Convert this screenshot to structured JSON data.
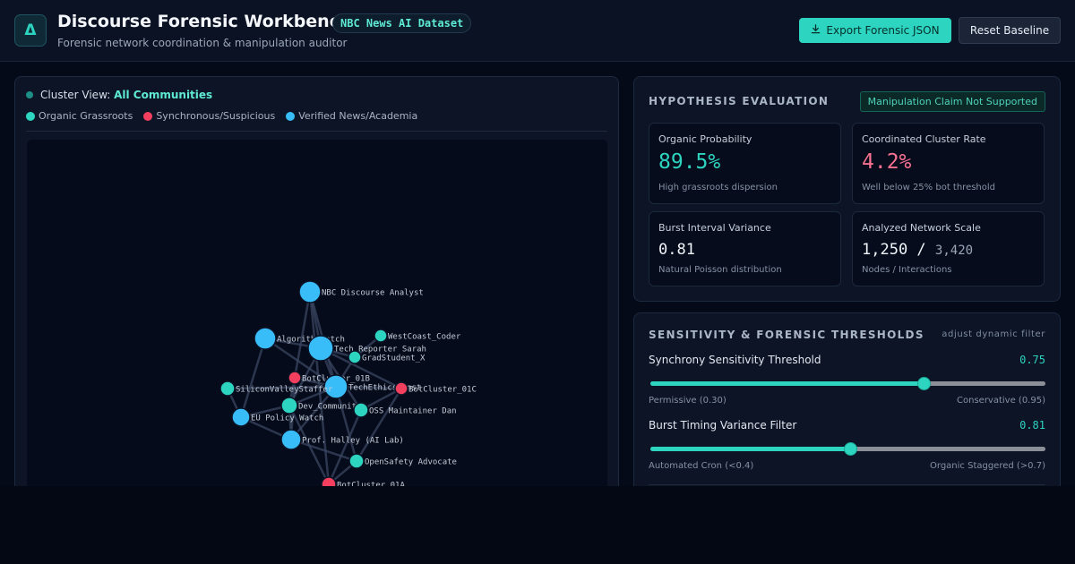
{
  "header": {
    "logo_glyph": "Δ",
    "title": "Discourse Forensic Workbench",
    "dataset_badge": "NBC News AI Dataset",
    "subtitle": "Forensic network coordination & manipulation auditor",
    "export_label": "Export Forensic JSON",
    "export_icon": "download-icon",
    "reset_label": "Reset Baseline"
  },
  "graph": {
    "cluster_prefix": "Cluster View:",
    "cluster_value": "All Communities",
    "legend": [
      {
        "label": "Organic Grassroots",
        "color": "#2dd4bf"
      },
      {
        "label": "Synchronous/Suspicious",
        "color": "#f43f5e"
      },
      {
        "label": "Verified News/Academia",
        "color": "#38bdf8"
      }
    ],
    "nodes": [
      {
        "label": "NBC Discourse Analyst",
        "type": "verified"
      },
      {
        "label": "AlgorithmWatch",
        "type": "verified"
      },
      {
        "label": "Tech Reporter Sarah",
        "type": "verified"
      },
      {
        "label": "WestCoast_Coder",
        "type": "organic"
      },
      {
        "label": "GradStudent_X",
        "type": "organic"
      },
      {
        "label": "BotCluster_01B",
        "type": "suspicious"
      },
      {
        "label": "TechEthics_Inst",
        "type": "verified"
      },
      {
        "label": "BotCluster_01C",
        "type": "suspicious"
      },
      {
        "label": "SiliconValleyStaffer",
        "type": "organic"
      },
      {
        "label": "Dev_Community",
        "type": "organic"
      },
      {
        "label": "OSS Maintainer Dan",
        "type": "organic"
      },
      {
        "label": "EU Policy Watch",
        "type": "verified"
      },
      {
        "label": "Prof. Halley (AI Lab)",
        "type": "verified"
      },
      {
        "label": "OpenSafety Advocate",
        "type": "organic"
      },
      {
        "label": "BotCluster_01A",
        "type": "suspicious"
      }
    ]
  },
  "hypothesis": {
    "heading": "HYPOTHESIS EVALUATION",
    "badge": "Manipulation Claim Not Supported",
    "metrics": [
      {
        "label": "Organic Probability",
        "value": "89.5%",
        "note": "High grassroots dispersion"
      },
      {
        "label": "Coordinated Cluster Rate",
        "value": "4.2%",
        "note": "Well below 25% bot threshold"
      },
      {
        "label": "Burst Interval Variance",
        "value": "0.81",
        "note": "Natural Poisson distribution"
      },
      {
        "label": "Analyzed Network Scale",
        "value_main": "1,250 /",
        "value_secondary": "3,420",
        "note": "Nodes / Interactions"
      }
    ]
  },
  "sensitivity": {
    "heading": "SENSITIVITY & FORENSIC THRESHOLDS",
    "adjust_label": "adjust dynamic filter",
    "sliders": [
      {
        "label": "Synchrony Sensitivity Threshold",
        "value": "0.75",
        "min": 0.3,
        "max": 0.95,
        "current": 0.75,
        "min_label": "Permissive (0.30)",
        "max_label": "Conservative (0.95)"
      },
      {
        "label": "Burst Timing Variance Filter",
        "value": "0.81",
        "min": 0.0,
        "max": 1.6,
        "current": 0.81,
        "min_label": "Automated Cron (<0.4)",
        "max_label": "Organic Staggered (>0.7)"
      }
    ]
  },
  "colors": {
    "accent": "#2dd4bf",
    "organic": "#2dd4bf",
    "suspicious": "#f43f5e",
    "verified": "#38bdf8",
    "danger_text": "#f87191"
  }
}
